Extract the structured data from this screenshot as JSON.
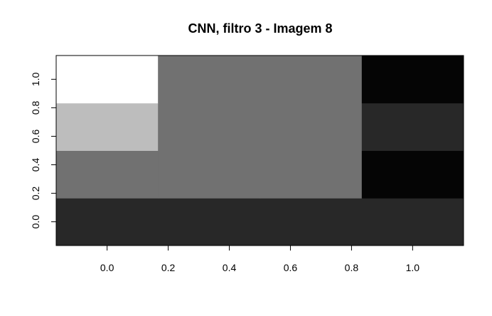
{
  "chart_data": {
    "type": "heatmap",
    "title": "CNN, filtro 3 - Imagem 8",
    "xlabel": "",
    "ylabel": "",
    "x_centers": [
      0.0,
      0.333,
      0.667,
      1.0
    ],
    "y_centers": [
      0.0,
      0.333,
      0.667,
      1.0
    ],
    "xlim": [
      -0.1667,
      1.1667
    ],
    "ylim": [
      -0.1667,
      1.1667
    ],
    "x_ticks": [
      0.0,
      0.2,
      0.4,
      0.6,
      0.8,
      1.0
    ],
    "y_ticks": [
      0.0,
      0.2,
      0.4,
      0.6,
      0.8,
      1.0
    ],
    "x_tick_labels": [
      "0.0",
      "0.2",
      "0.4",
      "0.6",
      "0.8",
      "1.0"
    ],
    "y_tick_labels": [
      "0.0",
      "0.2",
      "0.4",
      "0.6",
      "0.8",
      "1.0"
    ],
    "colormap": "grayscale",
    "grid": false,
    "legend": "none",
    "cells_gray_by_row_bottom_to_top": [
      [
        "#282828",
        "#282828",
        "#282828",
        "#282828"
      ],
      [
        "#717171",
        "#717171",
        "#717171",
        "#050505"
      ],
      [
        "#bdbdbd",
        "#717171",
        "#717171",
        "#282828"
      ],
      [
        "#ffffff",
        "#717171",
        "#717171",
        "#050505"
      ]
    ]
  }
}
